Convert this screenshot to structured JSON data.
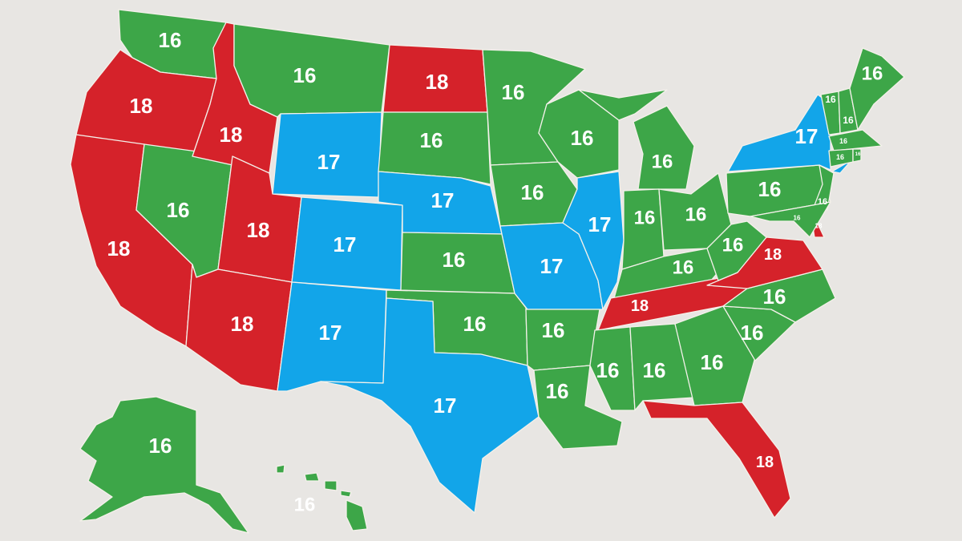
{
  "colors": {
    "background": "#e8e6e3",
    "16": "#3da648",
    "17": "#12a5e9",
    "18": "#d5222a",
    "label": "#ffffff",
    "hawaii_label": "#9a9a9a"
  },
  "states": [
    {
      "id": "WA",
      "value": "16"
    },
    {
      "id": "OR",
      "value": "18"
    },
    {
      "id": "CA",
      "value": "18"
    },
    {
      "id": "NV",
      "value": "16"
    },
    {
      "id": "ID",
      "value": "18"
    },
    {
      "id": "MT",
      "value": "16"
    },
    {
      "id": "WY",
      "value": "17"
    },
    {
      "id": "UT",
      "value": "18"
    },
    {
      "id": "CO",
      "value": "17"
    },
    {
      "id": "AZ",
      "value": "18"
    },
    {
      "id": "NM",
      "value": "17"
    },
    {
      "id": "ND",
      "value": "18"
    },
    {
      "id": "SD",
      "value": "16"
    },
    {
      "id": "NE",
      "value": "17"
    },
    {
      "id": "KS",
      "value": "16"
    },
    {
      "id": "OK",
      "value": "16"
    },
    {
      "id": "TX",
      "value": "17"
    },
    {
      "id": "MN",
      "value": "16"
    },
    {
      "id": "IA",
      "value": "16"
    },
    {
      "id": "MO",
      "value": "17"
    },
    {
      "id": "AR",
      "value": "16"
    },
    {
      "id": "LA",
      "value": "16"
    },
    {
      "id": "WI",
      "value": "16"
    },
    {
      "id": "IL",
      "value": "17"
    },
    {
      "id": "MI",
      "value": "16"
    },
    {
      "id": "IN",
      "value": "16"
    },
    {
      "id": "OH",
      "value": "16"
    },
    {
      "id": "KY",
      "value": "16"
    },
    {
      "id": "TN",
      "value": "18"
    },
    {
      "id": "MS",
      "value": "16"
    },
    {
      "id": "AL",
      "value": "16"
    },
    {
      "id": "GA",
      "value": "16"
    },
    {
      "id": "FL",
      "value": "18"
    },
    {
      "id": "SC",
      "value": "16"
    },
    {
      "id": "NC",
      "value": "16"
    },
    {
      "id": "VA",
      "value": "18"
    },
    {
      "id": "WV",
      "value": "16"
    },
    {
      "id": "PA",
      "value": "16"
    },
    {
      "id": "NY",
      "value": "17"
    },
    {
      "id": "NJ",
      "value": "16"
    },
    {
      "id": "DE",
      "value": "18"
    },
    {
      "id": "MD",
      "value": "16"
    },
    {
      "id": "VT",
      "value": "16"
    },
    {
      "id": "NH",
      "value": "16"
    },
    {
      "id": "ME",
      "value": "16"
    },
    {
      "id": "MA",
      "value": "16"
    },
    {
      "id": "CT",
      "value": "16"
    },
    {
      "id": "RI",
      "value": "16"
    },
    {
      "id": "AK",
      "value": "16"
    },
    {
      "id": "HI",
      "value": "16"
    }
  ]
}
